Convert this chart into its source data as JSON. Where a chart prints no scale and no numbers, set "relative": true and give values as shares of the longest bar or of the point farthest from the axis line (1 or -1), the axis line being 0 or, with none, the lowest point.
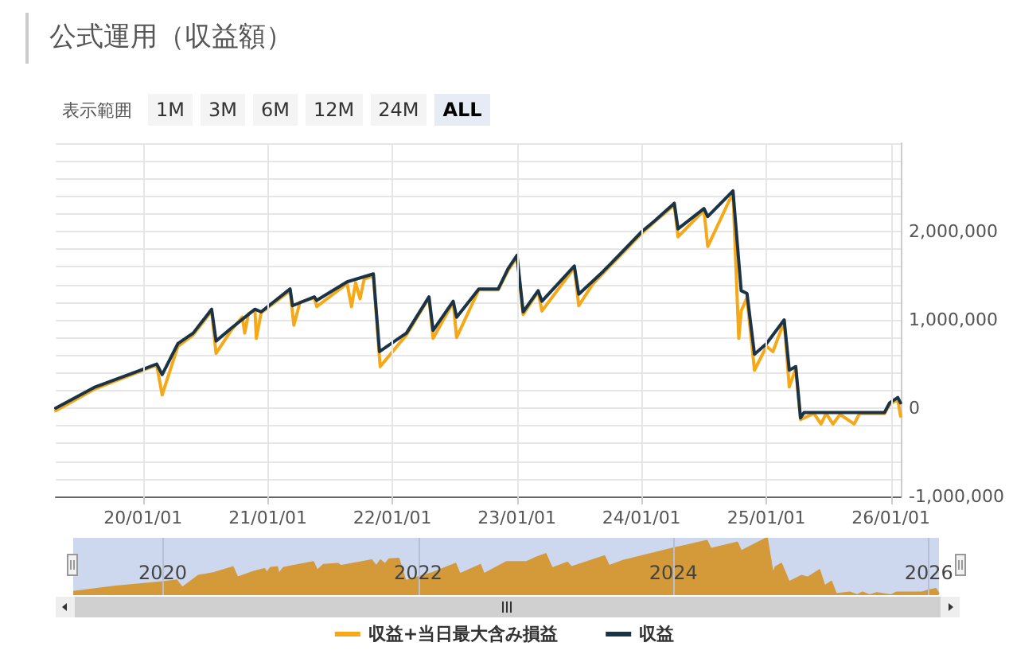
{
  "chart_data": [
    {
      "type": "line",
      "title": "公式運用（収益額）",
      "annotations": [
        "表示範囲",
        "1M",
        "3M",
        "6M",
        "12M",
        "24M",
        "ALL"
      ],
      "xlim": [
        "2019-04-20",
        "2026-01-30"
      ],
      "xticks": [
        {
          "value": "2020-01-01",
          "label": "20/01/01"
        },
        {
          "value": "2021-01-01",
          "label": "21/01/01"
        },
        {
          "value": "2022-01-01",
          "label": "22/01/01"
        },
        {
          "value": "2023-01-01",
          "label": "23/01/01"
        },
        {
          "value": "2024-01-01",
          "label": "24/01/01"
        },
        {
          "value": "2025-01-01",
          "label": "25/01/01"
        },
        {
          "value": "2026-01-01",
          "label": "26/01/01"
        }
      ],
      "ylim": [
        -1000000,
        3000000
      ],
      "yticks": [
        {
          "value": -1000000,
          "label": "-1,000,000"
        },
        {
          "value": -800000,
          "label": null
        },
        {
          "value": -600000,
          "label": null
        },
        {
          "value": -400000,
          "label": null
        },
        {
          "value": -200000,
          "label": null
        },
        0,
        {
          "value": 200000,
          "label": null
        },
        {
          "value": 400000,
          "label": null
        },
        {
          "value": 600000,
          "label": null
        },
        {
          "value": 800000,
          "label": null
        },
        {
          "value": 1000000,
          "label": "1,000,000"
        },
        {
          "value": 1200000,
          "label": null
        },
        {
          "value": 1400000,
          "label": null
        },
        {
          "value": 1600000,
          "label": null
        },
        {
          "value": 1800000,
          "label": null
        },
        {
          "value": 2000000,
          "label": "2,000,000"
        },
        {
          "value": 2200000,
          "label": null
        },
        {
          "value": 2400000,
          "label": null
        },
        {
          "value": 2600000,
          "label": null
        },
        {
          "value": 2800000,
          "label": null
        },
        {
          "value": 3000000,
          "label": null
        }
      ],
      "grid": true,
      "legend": "bottom",
      "marker": "none",
      "series": [
        {
          "name": "収益+当日最大含み損益",
          "color": "#f5a818",
          "x": [
            "2019-04-20",
            "2019-08-14",
            "2020-01-01",
            "2020-02-10",
            "2020-02-26",
            "2020-04-12",
            "2020-05-27",
            "2020-07-20",
            "2020-08-02",
            "2020-09-17",
            "2020-10-18",
            "2020-10-25",
            "2020-11-05",
            "2020-11-24",
            "2020-11-28",
            "2020-12-12",
            "2021-03-07",
            "2021-03-18",
            "2021-04-05",
            "2021-05-17",
            "2021-05-24",
            "2021-08-21",
            "2021-09-03",
            "2021-09-15",
            "2021-09-28",
            "2021-10-10",
            "2021-11-06",
            "2021-11-26",
            "2022-02-11",
            "2022-04-18",
            "2022-04-30",
            "2022-06-28",
            "2022-07-08",
            "2022-09-11",
            "2022-11-07",
            "2022-12-06",
            "2023-01-01",
            "2023-01-19",
            "2023-03-04",
            "2023-03-15",
            "2023-06-18",
            "2023-07-01",
            "2023-08-10",
            "2023-09-11",
            "2024-01-02",
            "2024-02-08",
            "2024-04-06",
            "2024-04-17",
            "2024-07-02",
            "2024-07-13",
            "2024-09-25",
            "2024-10-12",
            "2024-10-19",
            "2024-11-05",
            "2024-11-27",
            "2025-01-01",
            "2025-01-20",
            "2025-02-22",
            "2025-03-09",
            "2025-03-28",
            "2025-04-11",
            "2025-05-20",
            "2025-06-10",
            "2025-06-25",
            "2025-07-15",
            "2025-08-05",
            "2025-09-15",
            "2025-10-01",
            "2025-12-13",
            "2025-12-28",
            "2026-01-21",
            "2026-01-29"
          ],
          "values": [
            -30000,
            220000,
            430000,
            490000,
            150000,
            700000,
            830000,
            1100000,
            620000,
            890000,
            1030000,
            850000,
            1070000,
            1110000,
            790000,
            1080000,
            1330000,
            940000,
            1200000,
            1250000,
            1150000,
            1410000,
            1150000,
            1420000,
            1240000,
            1460000,
            1500000,
            470000,
            830000,
            1250000,
            790000,
            1200000,
            800000,
            1340000,
            1340000,
            1560000,
            1710000,
            1060000,
            1320000,
            1100000,
            1590000,
            1160000,
            1400000,
            1530000,
            1980000,
            2110000,
            2300000,
            1940000,
            2240000,
            1830000,
            2440000,
            790000,
            1100000,
            1250000,
            430000,
            700000,
            640000,
            980000,
            240000,
            450000,
            -130000,
            -60000,
            -180000,
            -60000,
            -180000,
            -70000,
            -180000,
            -60000,
            -60000,
            40000,
            100000,
            -90000
          ]
        },
        {
          "name": "収益",
          "color": "#1b3346",
          "x": [
            "2019-04-20",
            "2019-08-14",
            "2020-01-01",
            "2020-02-10",
            "2020-02-26",
            "2020-04-12",
            "2020-05-27",
            "2020-07-20",
            "2020-08-02",
            "2020-09-17",
            "2020-11-24",
            "2020-12-12",
            "2021-03-07",
            "2021-03-14",
            "2021-05-17",
            "2021-05-24",
            "2021-08-21",
            "2021-11-06",
            "2021-11-24",
            "2022-02-11",
            "2022-04-18",
            "2022-04-30",
            "2022-06-28",
            "2022-07-08",
            "2022-09-11",
            "2022-11-07",
            "2022-12-06",
            "2023-01-01",
            "2023-01-19",
            "2023-03-04",
            "2023-03-15",
            "2023-06-18",
            "2023-07-01",
            "2023-09-11",
            "2024-01-02",
            "2024-02-08",
            "2024-04-06",
            "2024-04-17",
            "2024-07-02",
            "2024-07-13",
            "2024-09-25",
            "2024-10-19",
            "2024-11-05",
            "2024-11-27",
            "2025-01-01",
            "2025-02-22",
            "2025-03-09",
            "2025-03-28",
            "2025-04-11",
            "2025-04-21",
            "2025-12-13",
            "2025-12-28",
            "2026-01-21",
            "2026-01-29"
          ],
          "values": [
            0,
            240000,
            440000,
            500000,
            380000,
            730000,
            850000,
            1120000,
            760000,
            910000,
            1120000,
            1090000,
            1350000,
            1160000,
            1260000,
            1220000,
            1430000,
            1520000,
            640000,
            850000,
            1260000,
            880000,
            1210000,
            1030000,
            1350000,
            1350000,
            1580000,
            1730000,
            1090000,
            1330000,
            1210000,
            1610000,
            1290000,
            1550000,
            2000000,
            2120000,
            2320000,
            2030000,
            2260000,
            2170000,
            2460000,
            1330000,
            1300000,
            610000,
            730000,
            1000000,
            430000,
            470000,
            -110000,
            -50000,
            -50000,
            60000,
            120000,
            60000
          ]
        }
      ]
    },
    {
      "type": "area",
      "relative": true,
      "grid": "x",
      "marker": "none",
      "xlim": [
        "2019-04-20",
        "2026-01-30"
      ],
      "xticks": [
        "2020",
        "2022",
        "2024",
        "2026"
      ],
      "series": [
        {
          "color": "#d49a3a",
          "x": [
            "2019-04-20",
            "2019-08-14",
            "2020-01-01",
            "2020-02-10",
            "2020-02-26",
            "2020-04-12",
            "2020-05-27",
            "2020-07-20",
            "2020-08-02",
            "2020-09-17",
            "2020-10-18",
            "2020-10-25",
            "2020-11-05",
            "2020-11-24",
            "2020-11-28",
            "2020-12-12",
            "2021-03-07",
            "2021-03-18",
            "2021-04-05",
            "2021-05-17",
            "2021-05-24",
            "2021-08-21",
            "2021-09-03",
            "2021-09-15",
            "2021-09-28",
            "2021-10-10",
            "2021-11-06",
            "2021-11-26",
            "2022-02-11",
            "2022-04-18",
            "2022-04-30",
            "2022-06-28",
            "2022-07-08",
            "2022-09-11",
            "2022-11-07",
            "2022-12-06",
            "2023-01-01",
            "2023-01-19",
            "2023-03-04",
            "2023-03-15",
            "2023-06-18",
            "2023-07-01",
            "2023-08-10",
            "2023-09-11",
            "2024-01-02",
            "2024-02-08",
            "2024-04-06",
            "2024-04-17",
            "2024-07-02",
            "2024-07-13",
            "2024-09-25",
            "2024-10-12",
            "2024-10-19",
            "2024-11-05",
            "2024-11-27",
            "2025-01-01",
            "2025-01-20",
            "2025-02-22",
            "2025-03-09",
            "2025-03-28",
            "2025-04-11",
            "2025-05-20",
            "2025-06-10",
            "2025-06-25",
            "2025-07-15",
            "2025-08-05",
            "2025-09-15",
            "2025-10-01",
            "2025-12-13",
            "2025-12-28",
            "2026-01-21",
            "2026-01-29"
          ],
          "values": [
            0.06,
            0.15,
            0.23,
            0.26,
            0.13,
            0.34,
            0.39,
            0.49,
            0.31,
            0.41,
            0.46,
            0.39,
            0.48,
            0.49,
            0.37,
            0.48,
            0.58,
            0.43,
            0.53,
            0.55,
            0.51,
            0.61,
            0.51,
            0.61,
            0.54,
            0.63,
            0.64,
            0.25,
            0.39,
            0.55,
            0.37,
            0.53,
            0.37,
            0.58,
            0.58,
            0.66,
            0.72,
            0.47,
            0.57,
            0.49,
            0.68,
            0.51,
            0.6,
            0.65,
            0.82,
            0.87,
            0.95,
            0.81,
            0.92,
            0.77,
            1,
            0.37,
            0.49,
            0.55,
            0.23,
            0.34,
            0.31,
            0.44,
            0.16,
            0.24,
            0.02,
            0.05,
            0,
            0.05,
            0,
            0.04,
            0,
            0.05,
            0.05,
            0.08,
            0.11,
            0.03
          ]
        }
      ]
    }
  ]
}
